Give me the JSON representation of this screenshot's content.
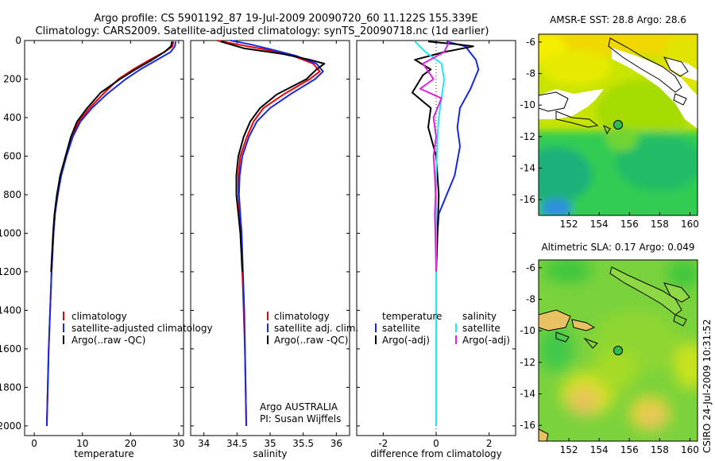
{
  "header": {
    "line1": "Argo profile: CS 5901192_87 19-Jul-2009 20090720_60 11.122S 155.339E",
    "line2": "Climatology: CARS2009. Satellite-adjusted climatology: synTS_20090718.nc (1d earlier)"
  },
  "credits": {
    "institution": "Argo AUSTRALIA",
    "pi": "PI: Susan Wijffels",
    "stamp": "CSIRO 24-Jul-2009 10:31:52"
  },
  "colors": {
    "red": "#ee0000",
    "blue": "#1428e6",
    "black": "#000000",
    "cyan": "#22e8ee",
    "magenta": "#dd22dd"
  },
  "depth_axis": {
    "ticks": [
      0,
      200,
      400,
      600,
      800,
      1000,
      1200,
      1400,
      1600,
      1800,
      2000
    ],
    "ylim": [
      2050,
      0
    ]
  },
  "chart_data": [
    {
      "type": "line",
      "id": "temperature",
      "xlabel": "temperature",
      "xlim": [
        -2,
        31
      ],
      "xticks": [
        0,
        10,
        20,
        30
      ],
      "legend": [
        "climatology",
        "satellite-adjusted climatology",
        "Argo(..raw -QC)"
      ],
      "series": [
        {
          "name": "climatology",
          "color": "red",
          "points": [
            [
              28.9,
              5
            ],
            [
              28.7,
              30
            ],
            [
              27,
              60
            ],
            [
              24,
              100
            ],
            [
              20.5,
              150
            ],
            [
              17.5,
              200
            ],
            [
              14.2,
              280
            ],
            [
              11.5,
              350
            ],
            [
              9.3,
              420
            ],
            [
              7.8,
              500
            ],
            [
              6.6,
              600
            ],
            [
              5.5,
              700
            ],
            [
              4.8,
              800
            ],
            [
              4.3,
              900
            ],
            [
              4,
              1000
            ],
            [
              3.6,
              1200
            ],
            [
              3.3,
              1400
            ],
            [
              3,
              1600
            ],
            [
              2.8,
              1800
            ],
            [
              2.6,
              2000
            ]
          ]
        },
        {
          "name": "satellite-adjusted climatology",
          "color": "blue",
          "points": [
            [
              29.4,
              5
            ],
            [
              29.2,
              30
            ],
            [
              28.3,
              60
            ],
            [
              25.5,
              100
            ],
            [
              22,
              150
            ],
            [
              19,
              200
            ],
            [
              15,
              280
            ],
            [
              12,
              350
            ],
            [
              9.6,
              420
            ],
            [
              8,
              500
            ],
            [
              6.7,
              600
            ],
            [
              5.6,
              700
            ],
            [
              4.9,
              800
            ],
            [
              4.3,
              900
            ],
            [
              4,
              1000
            ],
            [
              3.6,
              1200
            ],
            [
              3.3,
              1400
            ],
            [
              3,
              1600
            ],
            [
              2.8,
              1800
            ],
            [
              2.6,
              2000
            ]
          ]
        },
        {
          "name": "Argo(..raw -QC)",
          "color": "black",
          "points": [
            [
              28.6,
              5
            ],
            [
              28.4,
              30
            ],
            [
              27,
              60
            ],
            [
              24.5,
              100
            ],
            [
              21,
              150
            ],
            [
              17.8,
              200
            ],
            [
              13.8,
              270
            ],
            [
              11,
              350
            ],
            [
              8.9,
              420
            ],
            [
              7.6,
              500
            ],
            [
              6.5,
              600
            ],
            [
              5.4,
              700
            ],
            [
              4.7,
              800
            ],
            [
              4.2,
              900
            ],
            [
              3.9,
              1000
            ],
            [
              3.5,
              1200
            ]
          ]
        }
      ]
    },
    {
      "type": "line",
      "id": "salinity",
      "xlabel": "salinity",
      "xlim": [
        33.8,
        36.2
      ],
      "xticks": [
        34,
        34.5,
        35,
        35.5,
        36
      ],
      "legend": [
        "climatology",
        "satellite adj. clim.",
        "Argo(..raw -QC)"
      ],
      "series": [
        {
          "name": "climatology",
          "color": "red",
          "points": [
            [
              34.2,
              0
            ],
            [
              34.5,
              20
            ],
            [
              34.9,
              45
            ],
            [
              35.35,
              80
            ],
            [
              35.65,
              120
            ],
            [
              35.75,
              160
            ],
            [
              35.6,
              200
            ],
            [
              35.2,
              280
            ],
            [
              34.9,
              350
            ],
            [
              34.75,
              420
            ],
            [
              34.65,
              500
            ],
            [
              34.55,
              600
            ],
            [
              34.52,
              700
            ],
            [
              34.52,
              800
            ],
            [
              34.54,
              900
            ],
            [
              34.56,
              1000
            ],
            [
              34.58,
              1200
            ],
            [
              34.6,
              1400
            ],
            [
              34.62,
              1600
            ],
            [
              34.63,
              1800
            ],
            [
              34.64,
              2000
            ]
          ]
        },
        {
          "name": "satellite adj. clim.",
          "color": "blue",
          "points": [
            [
              34.4,
              0
            ],
            [
              34.7,
              20
            ],
            [
              35,
              45
            ],
            [
              35.4,
              80
            ],
            [
              35.7,
              120
            ],
            [
              35.8,
              160
            ],
            [
              35.68,
              200
            ],
            [
              35.3,
              280
            ],
            [
              35,
              350
            ],
            [
              34.8,
              420
            ],
            [
              34.68,
              500
            ],
            [
              34.58,
              600
            ],
            [
              34.54,
              700
            ],
            [
              34.53,
              800
            ],
            [
              34.55,
              900
            ],
            [
              34.57,
              1000
            ],
            [
              34.59,
              1200
            ],
            [
              34.61,
              1400
            ],
            [
              34.62,
              1600
            ],
            [
              34.63,
              1800
            ],
            [
              34.64,
              2000
            ]
          ]
        },
        {
          "name": "Argo(..raw -QC)",
          "color": "black",
          "points": [
            [
              34.25,
              5
            ],
            [
              34.6,
              40
            ],
            [
              35.2,
              70
            ],
            [
              35.6,
              100
            ],
            [
              35.82,
              120
            ],
            [
              35.7,
              150
            ],
            [
              35.55,
              200
            ],
            [
              35.1,
              280
            ],
            [
              34.85,
              350
            ],
            [
              34.7,
              420
            ],
            [
              34.6,
              500
            ],
            [
              34.52,
              600
            ],
            [
              34.49,
              700
            ],
            [
              34.49,
              800
            ],
            [
              34.52,
              900
            ],
            [
              34.55,
              1000
            ],
            [
              34.58,
              1200
            ]
          ]
        }
      ]
    },
    {
      "type": "line",
      "id": "difference",
      "xlabel": "difference from climatology",
      "xlim": [
        -3,
        3
      ],
      "xticks": [
        -2,
        0,
        2
      ],
      "legend_left_title": "temperature",
      "legend_right_title": "salinity",
      "legend_left": [
        "satellite",
        "Argo(-adj)"
      ],
      "legend_right": [
        "satellite",
        "Argo(-adj)"
      ],
      "series": [
        {
          "name": "temperature satellite",
          "color": "blue",
          "points": [
            [
              0.4,
              5
            ],
            [
              1.1,
              30
            ],
            [
              1.5,
              100
            ],
            [
              1.6,
              150
            ],
            [
              1.3,
              250
            ],
            [
              0.9,
              350
            ],
            [
              0.8,
              450
            ],
            [
              0.9,
              550
            ],
            [
              0.7,
              700
            ],
            [
              0.4,
              800
            ],
            [
              0.1,
              900
            ],
            [
              0.05,
              1000
            ],
            [
              0,
              1200
            ],
            [
              0,
              2000
            ]
          ]
        },
        {
          "name": "temperature Argo(-adj)",
          "color": "black",
          "points": [
            [
              -0.3,
              5
            ],
            [
              0.8,
              20
            ],
            [
              1.4,
              30
            ],
            [
              0.3,
              60
            ],
            [
              -0.8,
              100
            ],
            [
              -0.2,
              150
            ],
            [
              -0.5,
              180
            ],
            [
              -0.9,
              270
            ],
            [
              -0.2,
              350
            ],
            [
              -0.3,
              450
            ],
            [
              0,
              600
            ],
            [
              0.1,
              800
            ],
            [
              0.05,
              1000
            ],
            [
              0,
              1200
            ],
            [
              0,
              2000
            ]
          ]
        },
        {
          "name": "salinity satellite",
          "color": "cyan",
          "points": [
            [
              -0.8,
              5
            ],
            [
              -0.4,
              60
            ],
            [
              0.2,
              120
            ],
            [
              0.3,
              200
            ],
            [
              0.2,
              300
            ],
            [
              0.1,
              400
            ],
            [
              0.05,
              500
            ],
            [
              0,
              700
            ],
            [
              0,
              1000
            ],
            [
              0,
              1500
            ],
            [
              0,
              2000
            ]
          ]
        },
        {
          "name": "salinity Argo(-adj)",
          "color": "magenta",
          "points": [
            [
              0.5,
              5
            ],
            [
              0.3,
              60
            ],
            [
              -0.5,
              120
            ],
            [
              -0.3,
              160
            ],
            [
              -0.1,
              200
            ],
            [
              -0.6,
              250
            ],
            [
              0.2,
              300
            ],
            [
              -0.1,
              400
            ],
            [
              0,
              500
            ],
            [
              -0.1,
              600
            ],
            [
              -0.05,
              700
            ],
            [
              -0.02,
              800
            ],
            [
              -0.05,
              900
            ],
            [
              -0.03,
              1000
            ],
            [
              0,
              1200
            ]
          ]
        }
      ]
    },
    {
      "type": "heatmap",
      "id": "sst-map",
      "title": "AMSR-E SST: 28.8 Argo: 28.6",
      "xlim": [
        150,
        160.5
      ],
      "ylim": [
        -17,
        -5.5
      ],
      "xticks": [
        152,
        154,
        156,
        158,
        160
      ],
      "yticks": [
        -6,
        -8,
        -10,
        -12,
        -14,
        -16
      ],
      "profile_location": [
        155.34,
        -11.12
      ]
    },
    {
      "type": "heatmap",
      "id": "sla-map",
      "title": "Altimetric SLA: 0.17 Argo: 0.049",
      "xlim": [
        150,
        160.5
      ],
      "ylim": [
        -17,
        -5.5
      ],
      "xticks": [
        152,
        154,
        156,
        158,
        160
      ],
      "yticks": [
        -6,
        -8,
        -10,
        -12,
        -14,
        -16
      ],
      "profile_location": [
        155.34,
        -11.12
      ]
    }
  ]
}
